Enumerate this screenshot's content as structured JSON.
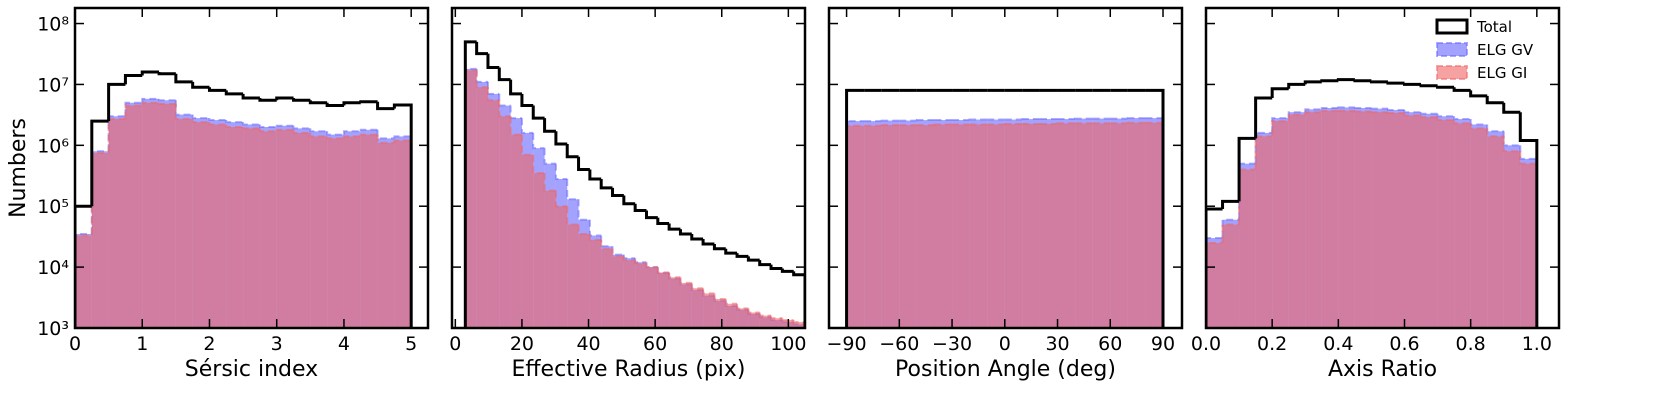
{
  "chart_data": [
    {
      "type": "histogram",
      "xlabel": "Sérsic index",
      "ylabel": "Numbers",
      "ylog": true,
      "ylim": [
        1000,
        180000000.0
      ],
      "yticks": [
        {
          "value": 1000,
          "label": "10³"
        },
        {
          "value": 10000,
          "label": "10⁴"
        },
        {
          "value": 100000,
          "label": "10⁵"
        },
        {
          "value": 1000000,
          "label": "10⁶"
        },
        {
          "value": 10000000,
          "label": "10⁷"
        },
        {
          "value": 100000000,
          "label": "10⁸"
        }
      ],
      "xlim": [
        0,
        5.25
      ],
      "xticks": [
        0,
        1,
        2,
        3,
        4,
        5
      ],
      "bins": [
        0,
        0.25,
        0.5,
        0.75,
        1,
        1.25,
        1.5,
        1.75,
        2,
        2.25,
        2.5,
        2.75,
        3,
        3.25,
        3.5,
        3.75,
        4,
        4.25,
        4.5,
        4.75,
        5
      ],
      "series": [
        {
          "color": "#000000",
          "fill": false,
          "values": [
            100000.0,
            2500000.0,
            10000000.0,
            14000000.0,
            16000000.0,
            15000000.0,
            11000000.0,
            9000000.0,
            8000000.0,
            7000000.0,
            6000000.0,
            5500000.0,
            6000000.0,
            5500000.0,
            5000000.0,
            4500000.0,
            5000000.0,
            5200000.0,
            4000000.0,
            4600000.0
          ]
        },
        {
          "color": "#6666ff",
          "fill": true,
          "values": [
            35000.0,
            800000.0,
            3000000.0,
            5000000.0,
            5800000.0,
            5500000.0,
            3200000.0,
            2800000.0,
            2600000.0,
            2400000.0,
            2200000.0,
            2000000.0,
            2100000.0,
            1900000.0,
            1700000.0,
            1500000.0,
            1700000.0,
            1800000.0,
            1300000.0,
            1400000.0
          ]
        },
        {
          "color": "#f06464",
          "fill": true,
          "values": [
            33000.0,
            750000.0,
            2700000.0,
            4500000.0,
            5000000.0,
            4800000.0,
            2700000.0,
            2400000.0,
            2200000.0,
            2000000.0,
            1900000.0,
            1700000.0,
            1800000.0,
            1600000.0,
            1400000.0,
            1300000.0,
            1400000.0,
            1500000.0,
            1100000.0,
            1200000.0
          ]
        }
      ]
    },
    {
      "type": "histogram",
      "xlabel": "Effective Radius (pix)",
      "sharey": true,
      "xlim": [
        -1,
        105
      ],
      "xticks": [
        0,
        20,
        40,
        60,
        80,
        100
      ],
      "bins": [
        3,
        6.4,
        9.8,
        13.2,
        16.6,
        20,
        23.4,
        26.8,
        30.2,
        33.6,
        37,
        40.4,
        43.8,
        47.2,
        50.6,
        54,
        57.4,
        60.8,
        64.2,
        67.6,
        71,
        74.4,
        77.8,
        81.2,
        84.6,
        88,
        91.4,
        94.8,
        98.2,
        101.6,
        105
      ],
      "series": [
        {
          "color": "#000000",
          "fill": false,
          "values": [
            50000000.0,
            32000000.0,
            19000000.0,
            12000000.0,
            7000000.0,
            4500000.0,
            2800000.0,
            1700000.0,
            1050000.0,
            650000.0,
            400000.0,
            280000.0,
            200000.0,
            150000.0,
            110000.0,
            85000.0,
            65000.0,
            52000.0,
            42000.0,
            35000.0,
            29000.0,
            24000.0,
            20000.0,
            17000.0,
            15000.0,
            13000.0,
            11000.0,
            9500,
            8500,
            7500
          ]
        },
        {
          "color": "#6666ff",
          "fill": true,
          "values": [
            18000000.0,
            11000000.0,
            7000000.0,
            4500000.0,
            2800000.0,
            1600000.0,
            900000.0,
            500000.0,
            280000.0,
            130000.0,
            60000.0,
            33000.0,
            22000.0,
            16000.0,
            14000.0,
            12000.0,
            10000.0,
            8000,
            6500,
            5200,
            4200,
            3400,
            2800,
            2300,
            2000,
            1700,
            1500,
            1350,
            1250,
            1150
          ]
        },
        {
          "color": "#f06464",
          "fill": true,
          "values": [
            17000000.0,
            9000000.0,
            5500000.0,
            3000000.0,
            1500000.0,
            700000.0,
            350000.0,
            180000.0,
            100000.0,
            50000.0,
            35000.0,
            28000.0,
            20000.0,
            15000.0,
            13000.0,
            11500.0,
            10000.0,
            8200,
            6800,
            5500,
            4500,
            3700,
            3000,
            2500,
            2100,
            1800,
            1600,
            1450,
            1350,
            1250
          ]
        }
      ]
    },
    {
      "type": "histogram",
      "xlabel": "Position Angle (deg)",
      "sharey": true,
      "xlim": [
        -100,
        100.8
      ],
      "xticks": [
        {
          "value": -90,
          "label": "−90"
        },
        {
          "value": -60,
          "label": "−60"
        },
        {
          "value": -30,
          "label": "−30"
        },
        0,
        30,
        60,
        90
      ],
      "bins": [
        -90,
        -80,
        -70,
        -60,
        -50,
        -40,
        -30,
        -20,
        -10,
        0,
        10,
        20,
        30,
        40,
        50,
        60,
        70,
        80,
        90
      ],
      "series": [
        {
          "color": "#000000",
          "fill": false,
          "values": [
            8000000.0,
            8000000.0,
            8000000.0,
            8000000.0,
            8000000.0,
            8000000.0,
            8000000.0,
            8000000.0,
            8000000.0,
            8000000.0,
            8000000.0,
            8000000.0,
            8000000.0,
            8000000.0,
            8000000.0,
            8000000.0,
            8000000.0,
            8000000.0
          ]
        },
        {
          "color": "#6666ff",
          "fill": true,
          "values": [
            2500000.0,
            2500000.0,
            2550000.0,
            2550000.0,
            2600000.0,
            2600000.0,
            2600000.0,
            2650000.0,
            2650000.0,
            2650000.0,
            2700000.0,
            2700000.0,
            2700000.0,
            2750000.0,
            2750000.0,
            2750000.0,
            2800000.0,
            2800000.0
          ]
        },
        {
          "color": "#f06464",
          "fill": true,
          "values": [
            2100000.0,
            2100000.0,
            2150000.0,
            2150000.0,
            2150000.0,
            2200000.0,
            2200000.0,
            2200000.0,
            2200000.0,
            2250000.0,
            2250000.0,
            2250000.0,
            2300000.0,
            2300000.0,
            2300000.0,
            2300000.0,
            2350000.0,
            2350000.0
          ]
        }
      ]
    },
    {
      "type": "histogram",
      "xlabel": "Axis Ratio",
      "sharey": true,
      "legend": "upper right",
      "xlim": [
        0,
        1.067
      ],
      "xticks": [
        {
          "value": 0,
          "label": "0.0"
        },
        0.2,
        0.4,
        0.6,
        0.8,
        {
          "value": 1,
          "label": "1.0"
        }
      ],
      "bins": [
        0,
        0.05,
        0.1,
        0.15,
        0.2,
        0.25,
        0.3,
        0.35,
        0.4,
        0.45,
        0.5,
        0.55,
        0.6,
        0.65,
        0.7,
        0.75,
        0.8,
        0.85,
        0.9,
        0.95,
        1
      ],
      "series": [
        {
          "name": "Total",
          "color": "#000000",
          "fill": false,
          "values": [
            90000.0,
            120000.0,
            1300000.0,
            6000000.0,
            8500000.0,
            10000000.0,
            11000000.0,
            11500000.0,
            12000000.0,
            11500000.0,
            11000000.0,
            10500000.0,
            10000000.0,
            9500000.0,
            9000000.0,
            8000000.0,
            6500000.0,
            5000000.0,
            3500000.0,
            1200000.0
          ]
        },
        {
          "name": "ELG GV",
          "color": "#6666ff",
          "fill": true,
          "values": [
            30000.0,
            60000.0,
            500000.0,
            1600000.0,
            2800000.0,
            3500000.0,
            3900000.0,
            4100000.0,
            4200000.0,
            4100000.0,
            4000000.0,
            3800000.0,
            3500000.0,
            3300000.0,
            3000000.0,
            2700000.0,
            2200000.0,
            1700000.0,
            1000000.0,
            600000.0
          ]
        },
        {
          "name": "ELG GI",
          "color": "#f06464",
          "fill": true,
          "values": [
            25000.0,
            50000.0,
            400000.0,
            1400000.0,
            2500000.0,
            3200000.0,
            3500000.0,
            3700000.0,
            3700000.0,
            3600000.0,
            3500000.0,
            3400000.0,
            3100000.0,
            2900000.0,
            2600000.0,
            2300000.0,
            1900000.0,
            1400000.0,
            800000.0,
            500000.0
          ]
        }
      ]
    }
  ]
}
